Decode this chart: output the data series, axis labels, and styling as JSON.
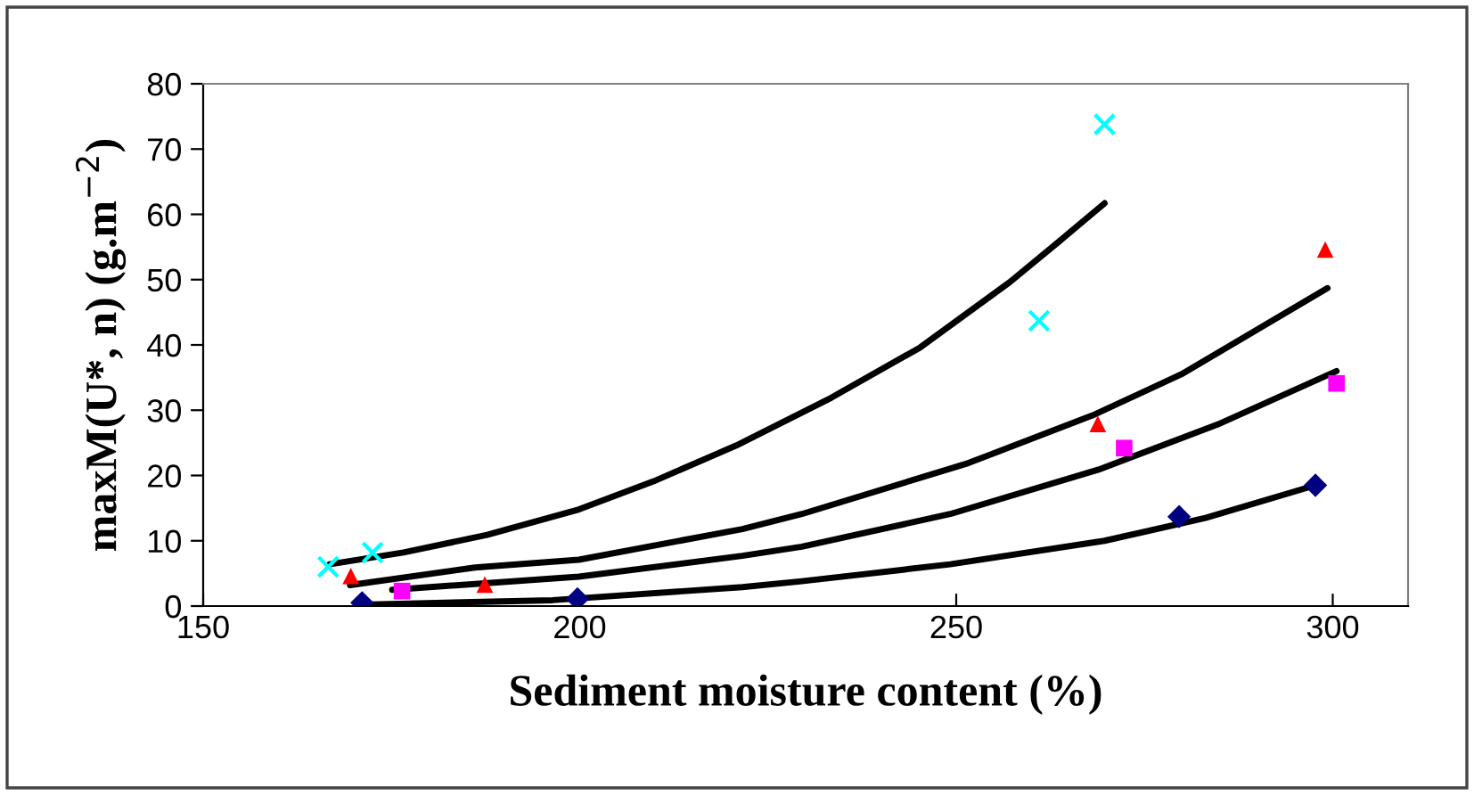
{
  "chart_data": {
    "type": "scatter",
    "xlabel": "Sediment moisture content (%)",
    "ylabel": "maxM(U*, n) (g.m$^{−2}$)",
    "xlim": [
      150,
      310
    ],
    "xticks": [
      150,
      200,
      250,
      300
    ],
    "ylim": [
      0,
      80
    ],
    "yticks": [
      0,
      10,
      20,
      30,
      40,
      50,
      60,
      70,
      80
    ],
    "grid": false,
    "legend": false,
    "series": [
      {
        "type": "line",
        "color": "#000000",
        "marker": "none",
        "x": [
          166.8,
          176.6,
          187.7,
          199.9,
          209.8,
          220.8,
          233.4,
          245.2,
          257.1,
          263.4,
          269.7
        ],
        "values": [
          6.4,
          8.2,
          10.9,
          14.8,
          19.1,
          24.6,
          31.9,
          39.6,
          49.6,
          55.6,
          61.7
        ]
      },
      {
        "type": "line",
        "color": "#000000",
        "marker": "none",
        "x": [
          169.5,
          186.1,
          199.9,
          221.6,
          229.5,
          251.6,
          268.1,
          279.9,
          299.3
        ],
        "values": [
          3.2,
          5.9,
          7.1,
          11.8,
          14.1,
          21.9,
          29.2,
          35.5,
          48.7
        ]
      },
      {
        "type": "line",
        "color": "#000000",
        "marker": "none",
        "x": [
          175.1,
          199.9,
          221.6,
          229.5,
          249.2,
          268.9,
          284.7,
          300.5
        ],
        "values": [
          2.5,
          4.5,
          7.7,
          9.1,
          14.1,
          20.9,
          27.8,
          36.0
        ]
      },
      {
        "type": "line",
        "color": "#000000",
        "marker": "none",
        "x": [
          171.1,
          196.4,
          221.6,
          229.5,
          249.2,
          269.7,
          283.1,
          297.7
        ],
        "values": [
          0.2,
          0.9,
          2.9,
          3.8,
          6.4,
          10.0,
          13.5,
          18.5
        ]
      },
      {
        "color": "#00ffff",
        "marker": "cross",
        "x": [
          166.6,
          172.5,
          261.0,
          269.7
        ],
        "values": [
          6,
          8.2,
          43.7,
          73.8
        ]
      },
      {
        "color": "#ff0000",
        "marker": "triangle",
        "x": [
          169.6,
          187.4,
          268.8,
          299.0
        ],
        "values": [
          4.6,
          3.3,
          27.9,
          54.6
        ]
      },
      {
        "color": "#ff00ff",
        "marker": "square",
        "x": [
          176.4,
          272.3,
          300.5
        ],
        "values": [
          2.3,
          24.2,
          34.1
        ]
      },
      {
        "color": "#000080",
        "marker": "diamond",
        "x": [
          171.1,
          199.7,
          279.6,
          297.7
        ],
        "values": [
          0.5,
          1.1,
          13.7,
          18.5
        ]
      }
    ]
  }
}
